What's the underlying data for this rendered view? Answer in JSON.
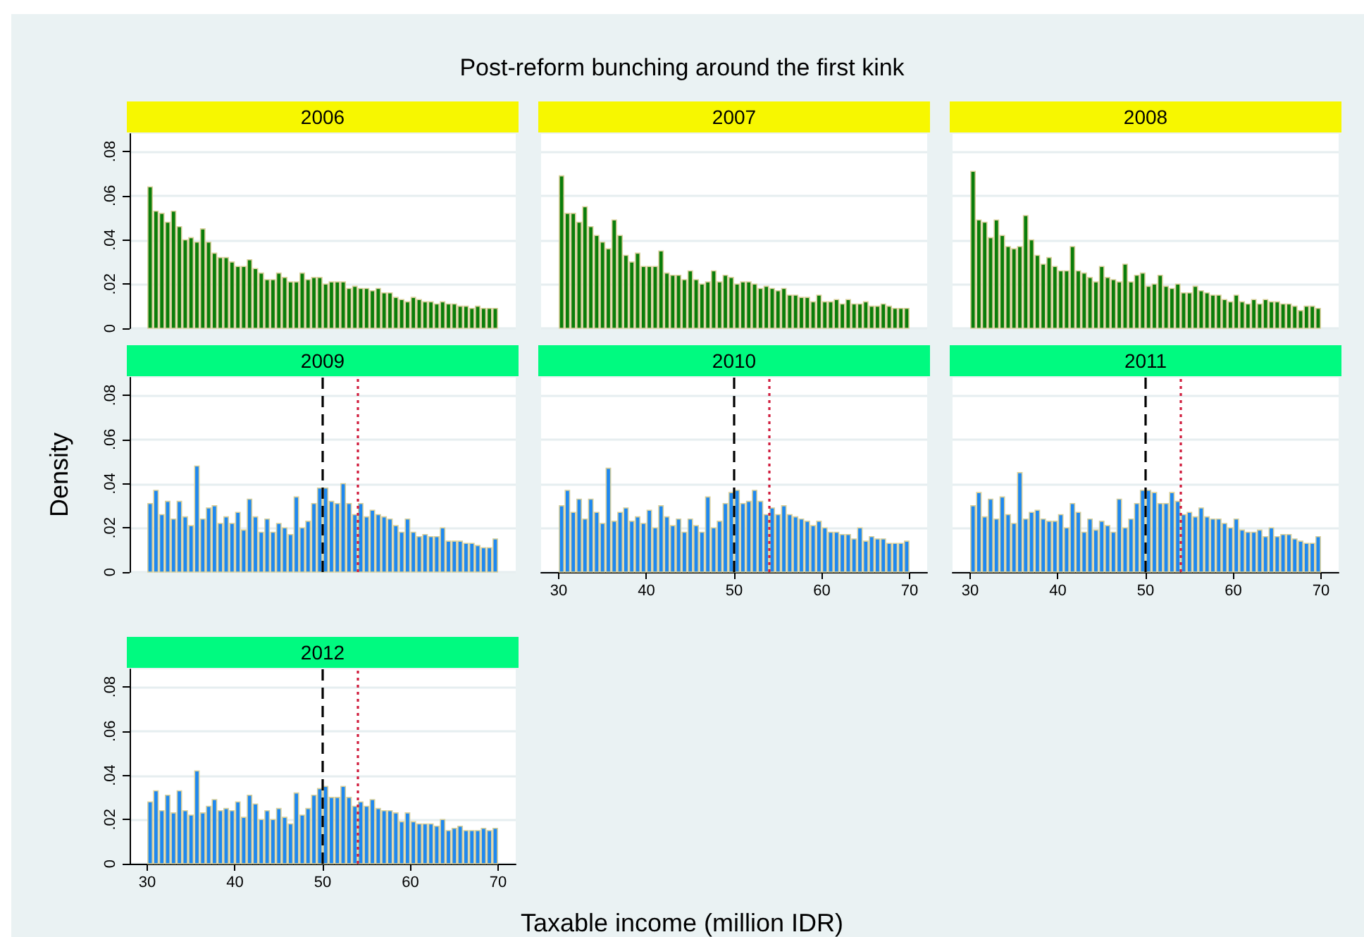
{
  "chart_data": [
    {
      "type": "histogram",
      "title": "2006",
      "annotations": [
        "Post-reform bunching around the first kink"
      ],
      "color": "#0a7d0a",
      "bins": [
        30,
        30.667,
        31.333,
        32,
        32.667,
        33.333,
        34,
        34.667,
        35.333,
        36,
        36.667,
        37.333,
        38,
        38.667,
        39.333,
        40,
        40.667,
        41.333,
        42,
        42.667,
        43.333,
        44,
        44.667,
        45.333,
        46,
        46.667,
        47.333,
        48,
        48.667,
        49.333,
        50,
        50.667,
        51.333,
        52,
        52.667,
        53.333,
        54,
        54.667,
        55.333,
        56,
        56.667,
        57.333,
        58,
        58.667,
        59.333,
        60,
        60.667,
        61.333,
        62,
        62.667,
        63.333,
        64,
        64.667,
        65.333,
        66,
        66.667,
        67.333,
        68,
        68.667,
        69.333,
        70
      ],
      "values": [
        0.064,
        0.053,
        0.052,
        0.048,
        0.053,
        0.046,
        0.04,
        0.041,
        0.039,
        0.045,
        0.039,
        0.034,
        0.032,
        0.032,
        0.03,
        0.028,
        0.028,
        0.031,
        0.027,
        0.025,
        0.022,
        0.022,
        0.025,
        0.023,
        0.021,
        0.021,
        0.025,
        0.022,
        0.023,
        0.023,
        0.02,
        0.021,
        0.021,
        0.021,
        0.018,
        0.019,
        0.018,
        0.018,
        0.017,
        0.018,
        0.016,
        0.016,
        0.014,
        0.013,
        0.012,
        0.014,
        0.013,
        0.012,
        0.012,
        0.011,
        0.012,
        0.011,
        0.011,
        0.01,
        0.01,
        0.009,
        0.01,
        0.009,
        0.009,
        0.009
      ],
      "xlim": [
        28,
        72
      ],
      "ylim": [
        0,
        0.088
      ],
      "xticks": [
        30,
        40,
        50,
        60,
        70
      ],
      "yticks": [
        {
          "value": 0,
          "label": "0"
        },
        {
          "value": 0.02,
          "label": ".02"
        },
        {
          "value": 0.04,
          "label": ".04"
        },
        {
          "value": 0.06,
          "label": ".06"
        },
        {
          "value": 0.08,
          "label": ".08"
        }
      ],
      "grid": "y",
      "tick_labels": "y"
    },
    {
      "type": "histogram",
      "title": "2007",
      "color": "#0a7d0a",
      "bins": [
        30,
        30.667,
        31.333,
        32,
        32.667,
        33.333,
        34,
        34.667,
        35.333,
        36,
        36.667,
        37.333,
        38,
        38.667,
        39.333,
        40,
        40.667,
        41.333,
        42,
        42.667,
        43.333,
        44,
        44.667,
        45.333,
        46,
        46.667,
        47.333,
        48,
        48.667,
        49.333,
        50,
        50.667,
        51.333,
        52,
        52.667,
        53.333,
        54,
        54.667,
        55.333,
        56,
        56.667,
        57.333,
        58,
        58.667,
        59.333,
        60,
        60.667,
        61.333,
        62,
        62.667,
        63.333,
        64,
        64.667,
        65.333,
        66,
        66.667,
        67.333,
        68,
        68.667,
        69.333,
        70
      ],
      "values": [
        0.069,
        0.052,
        0.052,
        0.048,
        0.055,
        0.046,
        0.042,
        0.039,
        0.036,
        0.049,
        0.042,
        0.033,
        0.03,
        0.034,
        0.028,
        0.028,
        0.028,
        0.035,
        0.025,
        0.024,
        0.024,
        0.022,
        0.026,
        0.022,
        0.02,
        0.021,
        0.026,
        0.021,
        0.024,
        0.023,
        0.02,
        0.021,
        0.021,
        0.02,
        0.018,
        0.019,
        0.018,
        0.017,
        0.018,
        0.015,
        0.015,
        0.014,
        0.014,
        0.012,
        0.015,
        0.012,
        0.012,
        0.013,
        0.011,
        0.013,
        0.011,
        0.011,
        0.012,
        0.01,
        0.01,
        0.011,
        0.01,
        0.009,
        0.009,
        0.009
      ],
      "xlim": [
        28,
        72
      ],
      "ylim": [
        0,
        0.088
      ],
      "xticks": [
        30,
        40,
        50,
        60,
        70
      ],
      "yticks": [
        0,
        0.02,
        0.04,
        0.06,
        0.08
      ],
      "grid": "y",
      "tick_labels": false
    },
    {
      "type": "histogram",
      "title": "2008",
      "color": "#0a7d0a",
      "bins": [
        30,
        30.667,
        31.333,
        32,
        32.667,
        33.333,
        34,
        34.667,
        35.333,
        36,
        36.667,
        37.333,
        38,
        38.667,
        39.333,
        40,
        40.667,
        41.333,
        42,
        42.667,
        43.333,
        44,
        44.667,
        45.333,
        46,
        46.667,
        47.333,
        48,
        48.667,
        49.333,
        50,
        50.667,
        51.333,
        52,
        52.667,
        53.333,
        54,
        54.667,
        55.333,
        56,
        56.667,
        57.333,
        58,
        58.667,
        59.333,
        60,
        60.667,
        61.333,
        62,
        62.667,
        63.333,
        64,
        64.667,
        65.333,
        66,
        66.667,
        67.333,
        68,
        68.667,
        69.333,
        70
      ],
      "values": [
        0.071,
        0.049,
        0.048,
        0.041,
        0.049,
        0.042,
        0.037,
        0.036,
        0.037,
        0.051,
        0.04,
        0.033,
        0.029,
        0.032,
        0.028,
        0.026,
        0.026,
        0.037,
        0.026,
        0.025,
        0.023,
        0.021,
        0.028,
        0.023,
        0.022,
        0.021,
        0.029,
        0.021,
        0.024,
        0.025,
        0.019,
        0.02,
        0.024,
        0.019,
        0.018,
        0.02,
        0.016,
        0.016,
        0.019,
        0.017,
        0.016,
        0.015,
        0.015,
        0.013,
        0.012,
        0.015,
        0.012,
        0.011,
        0.013,
        0.011,
        0.013,
        0.012,
        0.012,
        0.011,
        0.011,
        0.01,
        0.008,
        0.01,
        0.01,
        0.009
      ],
      "xlim": [
        28,
        72
      ],
      "ylim": [
        0,
        0.088
      ],
      "xticks": [
        30,
        40,
        50,
        60,
        70
      ],
      "yticks": [
        0,
        0.02,
        0.04,
        0.06,
        0.08
      ],
      "grid": "y",
      "tick_labels": false
    },
    {
      "type": "histogram",
      "title": "2009",
      "ylabel": "Density",
      "color": "#1e88f0",
      "bins": [
        30,
        30.667,
        31.333,
        32,
        32.667,
        33.333,
        34,
        34.667,
        35.333,
        36,
        36.667,
        37.333,
        38,
        38.667,
        39.333,
        40,
        40.667,
        41.333,
        42,
        42.667,
        43.333,
        44,
        44.667,
        45.333,
        46,
        46.667,
        47.333,
        48,
        48.667,
        49.333,
        50,
        50.667,
        51.333,
        52,
        52.667,
        53.333,
        54,
        54.667,
        55.333,
        56,
        56.667,
        57.333,
        58,
        58.667,
        59.333,
        60,
        60.667,
        61.333,
        62,
        62.667,
        63.333,
        64,
        64.667,
        65.333,
        66,
        66.667,
        67.333,
        68,
        68.667,
        69.333,
        70
      ],
      "values": [
        0.031,
        0.037,
        0.026,
        0.032,
        0.024,
        0.032,
        0.025,
        0.021,
        0.048,
        0.024,
        0.029,
        0.03,
        0.022,
        0.025,
        0.022,
        0.027,
        0.019,
        0.033,
        0.025,
        0.018,
        0.024,
        0.018,
        0.022,
        0.02,
        0.017,
        0.034,
        0.02,
        0.023,
        0.031,
        0.038,
        0.038,
        0.032,
        0.031,
        0.04,
        0.031,
        0.026,
        0.031,
        0.025,
        0.028,
        0.026,
        0.025,
        0.024,
        0.021,
        0.018,
        0.024,
        0.018,
        0.016,
        0.017,
        0.016,
        0.016,
        0.02,
        0.014,
        0.014,
        0.014,
        0.013,
        0.013,
        0.012,
        0.011,
        0.011,
        0.015
      ],
      "xlim": [
        28,
        72
      ],
      "ylim": [
        0,
        0.088
      ],
      "xticks": [
        30,
        40,
        50,
        60,
        70
      ],
      "yticks": [
        {
          "value": 0,
          "label": "0"
        },
        {
          "value": 0.02,
          "label": ".02"
        },
        {
          "value": 0.04,
          "label": ".04"
        },
        {
          "value": 0.06,
          "label": ".06"
        },
        {
          "value": 0.08,
          "label": ".08"
        }
      ],
      "grid": "y",
      "tick_labels": "y",
      "ref_lines": [
        {
          "axis": "x",
          "value": 50,
          "color": "#000000",
          "line_style": "dashed"
        },
        {
          "axis": "x",
          "value": 54,
          "color": "#d01c3c",
          "line_style": "dotted"
        }
      ]
    },
    {
      "type": "histogram",
      "title": "2010",
      "color": "#1e88f0",
      "bins": [
        30,
        30.667,
        31.333,
        32,
        32.667,
        33.333,
        34,
        34.667,
        35.333,
        36,
        36.667,
        37.333,
        38,
        38.667,
        39.333,
        40,
        40.667,
        41.333,
        42,
        42.667,
        43.333,
        44,
        44.667,
        45.333,
        46,
        46.667,
        47.333,
        48,
        48.667,
        49.333,
        50,
        50.667,
        51.333,
        52,
        52.667,
        53.333,
        54,
        54.667,
        55.333,
        56,
        56.667,
        57.333,
        58,
        58.667,
        59.333,
        60,
        60.667,
        61.333,
        62,
        62.667,
        63.333,
        64,
        64.667,
        65.333,
        66,
        66.667,
        67.333,
        68,
        68.667,
        69.333,
        70
      ],
      "values": [
        0.03,
        0.037,
        0.027,
        0.033,
        0.024,
        0.033,
        0.027,
        0.022,
        0.047,
        0.023,
        0.027,
        0.029,
        0.023,
        0.025,
        0.022,
        0.028,
        0.02,
        0.03,
        0.025,
        0.021,
        0.024,
        0.018,
        0.024,
        0.021,
        0.018,
        0.034,
        0.02,
        0.023,
        0.031,
        0.036,
        0.037,
        0.031,
        0.032,
        0.037,
        0.032,
        0.026,
        0.029,
        0.026,
        0.03,
        0.026,
        0.025,
        0.024,
        0.023,
        0.021,
        0.023,
        0.02,
        0.018,
        0.018,
        0.017,
        0.017,
        0.015,
        0.02,
        0.014,
        0.016,
        0.015,
        0.015,
        0.013,
        0.013,
        0.013,
        0.014
      ],
      "xlim": [
        28,
        72
      ],
      "ylim": [
        0,
        0.088
      ],
      "xticks": [
        30,
        40,
        50,
        60,
        70
      ],
      "yticks": [
        0,
        0.02,
        0.04,
        0.06,
        0.08
      ],
      "grid": "y",
      "tick_labels": "x",
      "ref_lines": [
        {
          "axis": "x",
          "value": 50,
          "color": "#000000",
          "line_style": "dashed"
        },
        {
          "axis": "x",
          "value": 54,
          "color": "#d01c3c",
          "line_style": "dotted"
        }
      ]
    },
    {
      "type": "histogram",
      "title": "2011",
      "color": "#1e88f0",
      "bins": [
        30,
        30.667,
        31.333,
        32,
        32.667,
        33.333,
        34,
        34.667,
        35.333,
        36,
        36.667,
        37.333,
        38,
        38.667,
        39.333,
        40,
        40.667,
        41.333,
        42,
        42.667,
        43.333,
        44,
        44.667,
        45.333,
        46,
        46.667,
        47.333,
        48,
        48.667,
        49.333,
        50,
        50.667,
        51.333,
        52,
        52.667,
        53.333,
        54,
        54.667,
        55.333,
        56,
        56.667,
        57.333,
        58,
        58.667,
        59.333,
        60,
        60.667,
        61.333,
        62,
        62.667,
        63.333,
        64,
        64.667,
        65.333,
        66,
        66.667,
        67.333,
        68,
        68.667,
        69.333,
        70
      ],
      "values": [
        0.03,
        0.036,
        0.025,
        0.033,
        0.024,
        0.034,
        0.026,
        0.022,
        0.045,
        0.024,
        0.027,
        0.028,
        0.024,
        0.023,
        0.023,
        0.026,
        0.02,
        0.031,
        0.027,
        0.018,
        0.024,
        0.019,
        0.023,
        0.021,
        0.018,
        0.033,
        0.02,
        0.024,
        0.031,
        0.037,
        0.037,
        0.036,
        0.031,
        0.031,
        0.036,
        0.032,
        0.026,
        0.027,
        0.025,
        0.029,
        0.025,
        0.024,
        0.024,
        0.022,
        0.02,
        0.024,
        0.019,
        0.018,
        0.018,
        0.019,
        0.016,
        0.02,
        0.016,
        0.017,
        0.017,
        0.015,
        0.014,
        0.013,
        0.013,
        0.016
      ],
      "xlim": [
        28,
        72
      ],
      "ylim": [
        0,
        0.088
      ],
      "xticks": [
        30,
        40,
        50,
        60,
        70
      ],
      "yticks": [
        0,
        0.02,
        0.04,
        0.06,
        0.08
      ],
      "grid": "y",
      "tick_labels": "x",
      "ref_lines": [
        {
          "axis": "x",
          "value": 50,
          "color": "#000000",
          "line_style": "dashed"
        },
        {
          "axis": "x",
          "value": 54,
          "color": "#d01c3c",
          "line_style": "dotted"
        }
      ]
    },
    {
      "type": "histogram",
      "title": "2012",
      "xlabel": "Taxable income (million IDR)",
      "color": "#1e88f0",
      "bins": [
        30,
        30.667,
        31.333,
        32,
        32.667,
        33.333,
        34,
        34.667,
        35.333,
        36,
        36.667,
        37.333,
        38,
        38.667,
        39.333,
        40,
        40.667,
        41.333,
        42,
        42.667,
        43.333,
        44,
        44.667,
        45.333,
        46,
        46.667,
        47.333,
        48,
        48.667,
        49.333,
        50,
        50.667,
        51.333,
        52,
        52.667,
        53.333,
        54,
        54.667,
        55.333,
        56,
        56.667,
        57.333,
        58,
        58.667,
        59.333,
        60,
        60.667,
        61.333,
        62,
        62.667,
        63.333,
        64,
        64.667,
        65.333,
        66,
        66.667,
        67.333,
        68,
        68.667,
        69.333,
        70
      ],
      "values": [
        0.028,
        0.033,
        0.024,
        0.031,
        0.023,
        0.033,
        0.024,
        0.022,
        0.042,
        0.023,
        0.026,
        0.029,
        0.024,
        0.025,
        0.024,
        0.028,
        0.021,
        0.031,
        0.027,
        0.02,
        0.024,
        0.02,
        0.025,
        0.021,
        0.018,
        0.032,
        0.022,
        0.025,
        0.031,
        0.034,
        0.035,
        0.03,
        0.03,
        0.035,
        0.03,
        0.026,
        0.028,
        0.026,
        0.029,
        0.025,
        0.024,
        0.024,
        0.023,
        0.019,
        0.023,
        0.019,
        0.018,
        0.018,
        0.018,
        0.017,
        0.02,
        0.015,
        0.016,
        0.017,
        0.015,
        0.015,
        0.015,
        0.016,
        0.015,
        0.016
      ],
      "xlim": [
        28,
        72
      ],
      "ylim": [
        0,
        0.088
      ],
      "xticks": [
        30,
        40,
        50,
        60,
        70
      ],
      "yticks": [
        {
          "value": 0,
          "label": "0"
        },
        {
          "value": 0.02,
          "label": ".02"
        },
        {
          "value": 0.04,
          "label": ".04"
        },
        {
          "value": 0.06,
          "label": ".06"
        },
        {
          "value": 0.08,
          "label": ".08"
        }
      ],
      "grid": "y",
      "ref_lines": [
        {
          "axis": "x",
          "value": 50,
          "color": "#000000",
          "line_style": "dashed"
        },
        {
          "axis": "x",
          "value": 54,
          "color": "#d01c3c",
          "line_style": "dotted"
        }
      ]
    }
  ]
}
